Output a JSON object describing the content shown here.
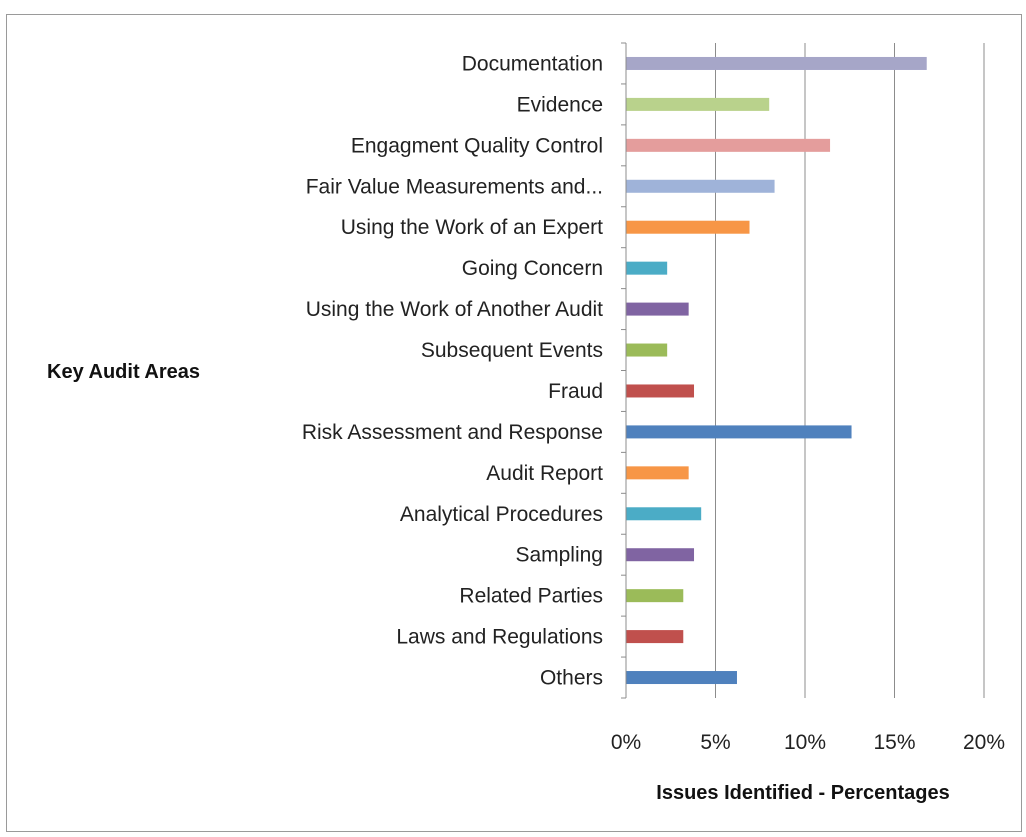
{
  "chart_data": {
    "type": "bar",
    "orientation": "horizontal",
    "categories": [
      "Documentation",
      "Evidence",
      "Engagment Quality Control",
      "Fair Value Measurements and...",
      "Using the Work of an Expert",
      "Going Concern",
      "Using the Work of Another Audit",
      "Subsequent Events",
      "Fraud",
      "Risk Assessment and Response",
      "Audit Report",
      "Analytical Procedures",
      "Sampling",
      "Related Parties",
      "Laws and Regulations",
      "Others"
    ],
    "values": [
      16.8,
      8.0,
      11.4,
      8.3,
      6.9,
      2.3,
      3.5,
      2.3,
      3.8,
      12.6,
      3.5,
      4.2,
      3.8,
      3.2,
      3.2,
      6.2
    ],
    "colors": [
      "#a6a6c8",
      "#b9d28c",
      "#e49d9c",
      "#9fb3d9",
      "#f79646",
      "#4bacc6",
      "#8064a2",
      "#9bbb59",
      "#c0504d",
      "#4f81bd",
      "#f79646",
      "#4bacc6",
      "#8064a2",
      "#9bbb59",
      "#c0504d",
      "#4f81bd"
    ],
    "xlabel": "Issues Identified - Percentages",
    "ylabel": "Key Audit Areas",
    "xlim": [
      0,
      20
    ],
    "xticks": [
      0,
      5,
      10,
      15,
      20
    ],
    "xtick_labels": [
      "0%",
      "5%",
      "10%",
      "15%",
      "20%"
    ],
    "grid": "vertical"
  }
}
